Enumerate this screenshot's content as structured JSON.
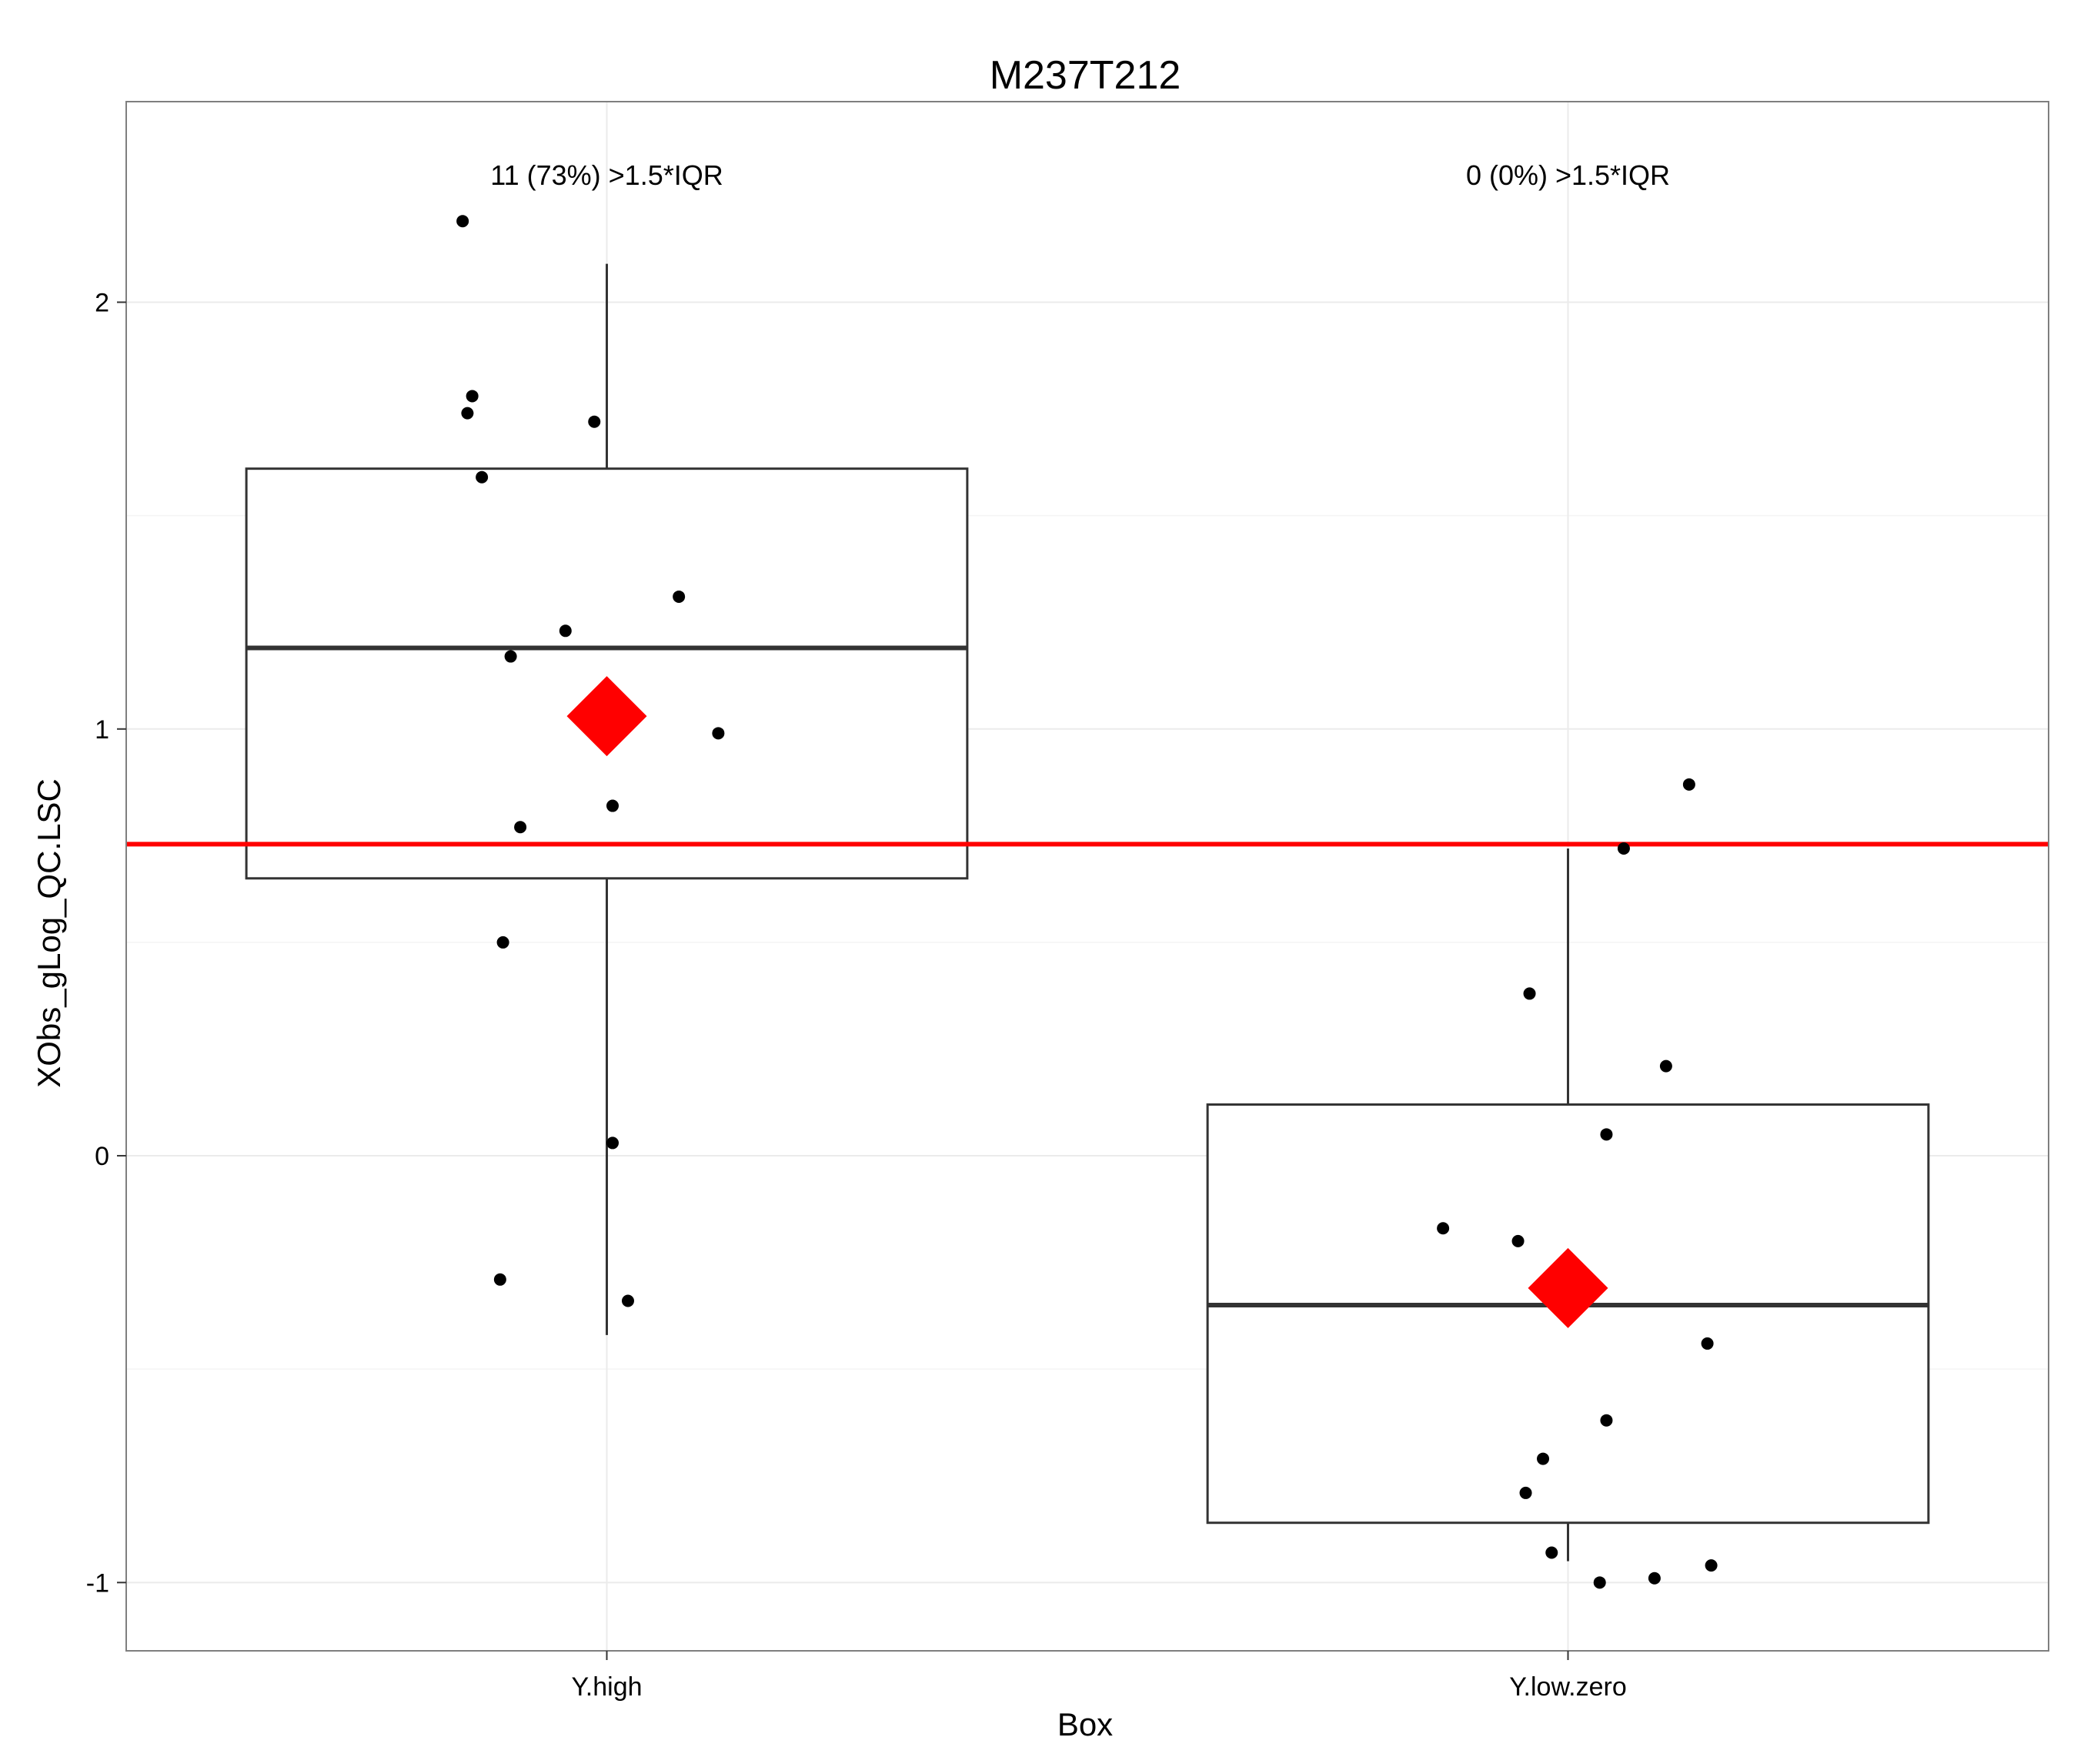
{
  "chart_data": {
    "type": "box",
    "title": "M237T212",
    "xlabel": "Box",
    "ylabel": "XObs_gLog_QC.LSC",
    "categories": [
      "Y.high",
      "Y.low.zero"
    ],
    "y_ticks": [
      {
        "value": -1,
        "label": "-1"
      },
      {
        "value": 0,
        "label": "0"
      },
      {
        "value": 1,
        "label": "1"
      },
      {
        "value": 2,
        "label": "2"
      }
    ],
    "ylim": [
      -1.16,
      2.47
    ],
    "grid": true,
    "reference_line": {
      "y": 0.73,
      "color": "#ff0000"
    },
    "annotations": [
      "11 (73%) >1.5*IQR",
      "0 (0%) >1.5*IQR"
    ],
    "boxes": [
      {
        "category": "Y.high",
        "whisker_low": -0.42,
        "q1": 0.65,
        "median": 1.19,
        "q3": 1.61,
        "whisker_high": 2.09,
        "mean": 1.03
      },
      {
        "category": "Y.low.zero",
        "whisker_low": -0.95,
        "q1": -0.86,
        "median": -0.35,
        "q3": 0.12,
        "whisker_high": 0.72,
        "mean": -0.31
      }
    ],
    "points": [
      {
        "category": "Y.high",
        "jitter": -0.15,
        "y": 2.19
      },
      {
        "category": "Y.high",
        "jitter": -0.14,
        "y": 1.78
      },
      {
        "category": "Y.high",
        "jitter": -0.145,
        "y": 1.74
      },
      {
        "category": "Y.high",
        "jitter": -0.013,
        "y": 1.72
      },
      {
        "category": "Y.high",
        "jitter": -0.13,
        "y": 1.59
      },
      {
        "category": "Y.high",
        "jitter": 0.075,
        "y": 1.31
      },
      {
        "category": "Y.high",
        "jitter": -0.043,
        "y": 1.23
      },
      {
        "category": "Y.high",
        "jitter": -0.1,
        "y": 1.17
      },
      {
        "category": "Y.high",
        "jitter": 0.116,
        "y": 0.99
      },
      {
        "category": "Y.high",
        "jitter": 0.006,
        "y": 0.82
      },
      {
        "category": "Y.high",
        "jitter": -0.09,
        "y": 0.77
      },
      {
        "category": "Y.high",
        "jitter": -0.108,
        "y": 0.5
      },
      {
        "category": "Y.high",
        "jitter": 0.006,
        "y": 0.03
      },
      {
        "category": "Y.high",
        "jitter": -0.111,
        "y": -0.29
      },
      {
        "category": "Y.high",
        "jitter": 0.022,
        "y": -0.34
      },
      {
        "category": "Y.low.zero",
        "jitter": 0.126,
        "y": 0.87
      },
      {
        "category": "Y.low.zero",
        "jitter": 0.058,
        "y": 0.72
      },
      {
        "category": "Y.low.zero",
        "jitter": -0.04,
        "y": 0.38
      },
      {
        "category": "Y.low.zero",
        "jitter": 0.102,
        "y": 0.21
      },
      {
        "category": "Y.low.zero",
        "jitter": 0.04,
        "y": 0.05
      },
      {
        "category": "Y.low.zero",
        "jitter": -0.13,
        "y": -0.17
      },
      {
        "category": "Y.low.zero",
        "jitter": -0.052,
        "y": -0.2
      },
      {
        "category": "Y.low.zero",
        "jitter": 0.145,
        "y": -0.44
      },
      {
        "category": "Y.low.zero",
        "jitter": 0.04,
        "y": -0.62
      },
      {
        "category": "Y.low.zero",
        "jitter": -0.026,
        "y": -0.71
      },
      {
        "category": "Y.low.zero",
        "jitter": -0.044,
        "y": -0.79
      },
      {
        "category": "Y.low.zero",
        "jitter": -0.017,
        "y": -0.93
      },
      {
        "category": "Y.low.zero",
        "jitter": 0.149,
        "y": -0.96
      },
      {
        "category": "Y.low.zero",
        "jitter": 0.09,
        "y": -0.99
      },
      {
        "category": "Y.low.zero",
        "jitter": 0.033,
        "y": -1.0
      }
    ],
    "colors": {
      "mean_marker": "#ff0000",
      "reference_line": "#ff0000",
      "points": "#000000",
      "box": "#333333",
      "grid": "#ebebeb"
    }
  }
}
